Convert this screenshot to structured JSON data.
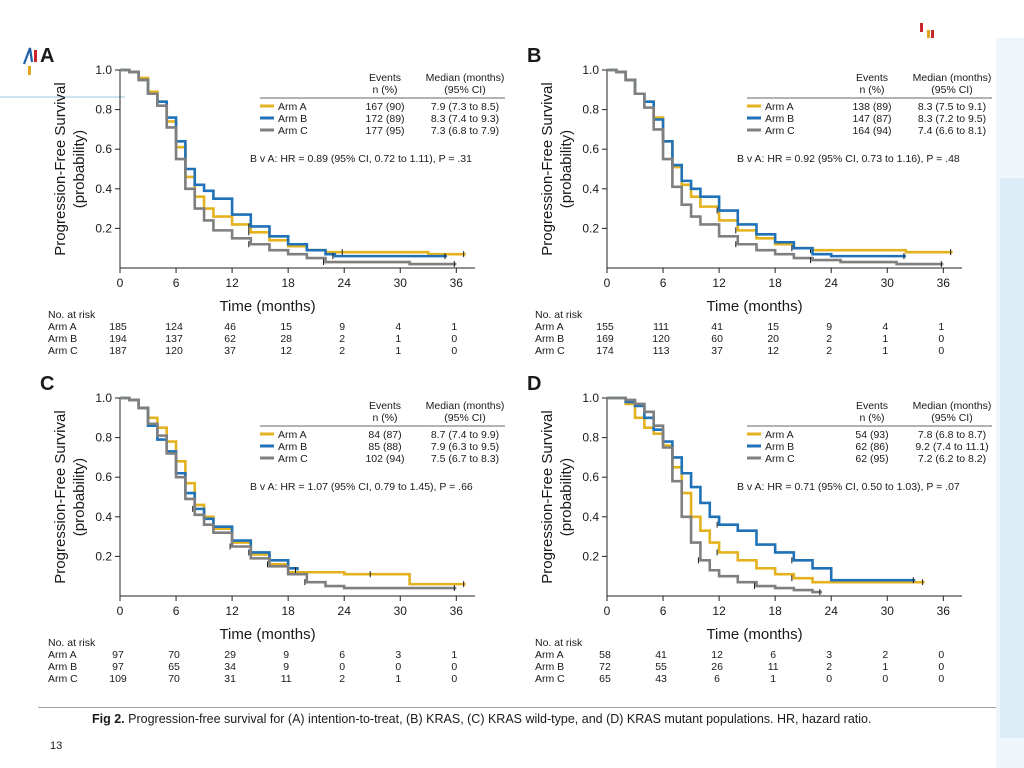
{
  "colors": {
    "arm_a": "#e3b21e",
    "arm_b": "#1f72b8",
    "arm_c": "#7f7f7f",
    "logo_blue": "#1f5fa8",
    "logo_red": "#c8282d",
    "logo_yellow": "#e2a51e"
  },
  "page_number": "13",
  "caption": {
    "label": "Fig 2.",
    "text": "Progression-free survival for (A) intention-to-treat, (B) KRAS, (C) KRAS wild-type, and (D) KRAS mutant populations. HR, hazard ratio."
  },
  "table_headers": {
    "events": "Events",
    "events_unit": "n (%)",
    "median": "Median (months)",
    "median_unit": "(95% CI)"
  },
  "risk_title": "No. at risk",
  "chart_data": [
    {
      "type": "line",
      "panel": "A",
      "xlabel": "Time (months)",
      "ylabel": "Progression-Free Survival (probability)",
      "xlim": [
        0,
        38
      ],
      "ylim": [
        0,
        1.0
      ],
      "xticks": [
        0,
        6,
        12,
        18,
        24,
        30,
        36
      ],
      "yticks": [
        0.2,
        0.4,
        0.6,
        0.8,
        1.0
      ],
      "legend": [
        {
          "arm": "Arm A",
          "events": "167 (90)",
          "median": "7.9 (7.3 to 8.5)"
        },
        {
          "arm": "Arm B",
          "events": "172 (89)",
          "median": "8.3 (7.4 to 9.3)"
        },
        {
          "arm": "Arm C",
          "events": "177 (95)",
          "median": "7.3 (6.8 to 7.9)"
        }
      ],
      "hr_text": "B v A: HR = 0.89 (95% CI, 0.72 to 1.11), P = .31",
      "risk": [
        {
          "arm": "Arm A",
          "values": [
            185,
            124,
            46,
            15,
            9,
            4,
            1
          ]
        },
        {
          "arm": "Arm B",
          "values": [
            194,
            137,
            62,
            28,
            2,
            1,
            0
          ]
        },
        {
          "arm": "Arm C",
          "values": [
            187,
            120,
            37,
            12,
            2,
            1,
            0
          ]
        }
      ],
      "series": [
        {
          "name": "Arm A",
          "x": [
            0,
            1,
            2,
            3,
            4,
            5,
            6,
            7,
            8,
            9,
            10,
            12,
            14,
            16,
            18,
            20,
            22,
            24,
            27,
            30,
            33,
            35,
            37
          ],
          "y": [
            1.0,
            0.99,
            0.96,
            0.89,
            0.84,
            0.74,
            0.61,
            0.46,
            0.36,
            0.3,
            0.26,
            0.22,
            0.18,
            0.14,
            0.11,
            0.09,
            0.08,
            0.08,
            0.08,
            0.08,
            0.07,
            0.07,
            0.07
          ]
        },
        {
          "name": "Arm B",
          "x": [
            0,
            1,
            2,
            3,
            4,
            5,
            6,
            7,
            8,
            9,
            10,
            12,
            14,
            16,
            18,
            20,
            22,
            23,
            25,
            28,
            30,
            32,
            35
          ],
          "y": [
            1.0,
            0.99,
            0.95,
            0.88,
            0.84,
            0.76,
            0.64,
            0.5,
            0.42,
            0.39,
            0.35,
            0.27,
            0.21,
            0.16,
            0.12,
            0.09,
            0.07,
            0.06,
            0.06,
            0.06,
            0.06,
            0.06,
            0.06
          ]
        },
        {
          "name": "Arm C",
          "x": [
            0,
            1,
            2,
            3,
            4,
            5,
            6,
            7,
            8,
            9,
            10,
            12,
            14,
            16,
            18,
            20,
            22,
            25,
            28,
            31,
            34,
            36
          ],
          "y": [
            1.0,
            0.99,
            0.95,
            0.88,
            0.82,
            0.71,
            0.55,
            0.4,
            0.3,
            0.24,
            0.19,
            0.15,
            0.12,
            0.09,
            0.07,
            0.05,
            0.03,
            0.03,
            0.03,
            0.02,
            0.02,
            0.02
          ]
        }
      ]
    },
    {
      "type": "line",
      "panel": "B",
      "xlabel": "Time (months)",
      "ylabel": "Progression-Free Survival (probability)",
      "xlim": [
        0,
        38
      ],
      "ylim": [
        0,
        1.0
      ],
      "xticks": [
        0,
        6,
        12,
        18,
        24,
        30,
        36
      ],
      "yticks": [
        0.2,
        0.4,
        0.6,
        0.8,
        1.0
      ],
      "legend": [
        {
          "arm": "Arm A",
          "events": "138 (89)",
          "median": "8.3 (7.5 to 9.1)"
        },
        {
          "arm": "Arm B",
          "events": "147 (87)",
          "median": "8.3 (7.2 to 9.5)"
        },
        {
          "arm": "Arm C",
          "events": "164 (94)",
          "median": "7.4 (6.6 to 8.1)"
        }
      ],
      "hr_text": "B v A: HR = 0.92 (95% CI, 0.73 to 1.16), P = .48",
      "risk": [
        {
          "arm": "Arm A",
          "values": [
            155,
            111,
            41,
            15,
            9,
            4,
            1
          ]
        },
        {
          "arm": "Arm B",
          "values": [
            169,
            120,
            60,
            20,
            2,
            1,
            0
          ]
        },
        {
          "arm": "Arm C",
          "values": [
            174,
            113,
            37,
            12,
            2,
            1,
            0
          ]
        }
      ],
      "series": [
        {
          "name": "Arm A",
          "x": [
            0,
            1,
            2,
            3,
            4,
            5,
            6,
            7,
            8,
            9,
            10,
            12,
            14,
            16,
            18,
            20,
            22,
            24,
            28,
            32,
            35,
            37
          ],
          "y": [
            1.0,
            0.99,
            0.95,
            0.88,
            0.84,
            0.76,
            0.64,
            0.51,
            0.42,
            0.36,
            0.31,
            0.24,
            0.19,
            0.15,
            0.12,
            0.1,
            0.09,
            0.09,
            0.09,
            0.08,
            0.08,
            0.08
          ]
        },
        {
          "name": "Arm B",
          "x": [
            0,
            1,
            2,
            3,
            4,
            5,
            6,
            7,
            8,
            9,
            10,
            12,
            14,
            16,
            18,
            20,
            22,
            24,
            27,
            30,
            32
          ],
          "y": [
            1.0,
            0.99,
            0.95,
            0.88,
            0.84,
            0.75,
            0.64,
            0.52,
            0.44,
            0.4,
            0.36,
            0.29,
            0.22,
            0.17,
            0.13,
            0.1,
            0.07,
            0.06,
            0.06,
            0.06,
            0.06
          ]
        },
        {
          "name": "Arm C",
          "x": [
            0,
            1,
            2,
            3,
            4,
            5,
            6,
            7,
            8,
            9,
            10,
            12,
            14,
            16,
            18,
            20,
            22,
            25,
            28,
            31,
            34,
            36
          ],
          "y": [
            1.0,
            0.99,
            0.95,
            0.88,
            0.81,
            0.7,
            0.55,
            0.41,
            0.32,
            0.26,
            0.22,
            0.16,
            0.12,
            0.09,
            0.07,
            0.05,
            0.04,
            0.03,
            0.03,
            0.02,
            0.02,
            0.02
          ]
        }
      ]
    },
    {
      "type": "line",
      "panel": "C",
      "xlabel": "Time (months)",
      "ylabel": "Progression-Free Survival (probability)",
      "xlim": [
        0,
        38
      ],
      "ylim": [
        0,
        1.0
      ],
      "xticks": [
        0,
        6,
        12,
        18,
        24,
        30,
        36
      ],
      "yticks": [
        0.2,
        0.4,
        0.6,
        0.8,
        1.0
      ],
      "legend": [
        {
          "arm": "Arm A",
          "events": "84 (87)",
          "median": "8.7 (7.4 to 9.9)"
        },
        {
          "arm": "Arm B",
          "events": "85 (88)",
          "median": "7.9 (6.3 to 9.5)"
        },
        {
          "arm": "Arm C",
          "events": "102 (94)",
          "median": "7.5 (6.7 to 8.3)"
        }
      ],
      "hr_text": "B v A: HR = 1.07 (95% CI, 0.79 to 1.45), P = .66",
      "risk": [
        {
          "arm": "Arm A",
          "values": [
            97,
            70,
            29,
            9,
            6,
            3,
            1
          ]
        },
        {
          "arm": "Arm B",
          "values": [
            97,
            65,
            34,
            9,
            0,
            0,
            0
          ]
        },
        {
          "arm": "Arm C",
          "values": [
            109,
            70,
            31,
            11,
            2,
            1,
            0
          ]
        }
      ],
      "series": [
        {
          "name": "Arm A",
          "x": [
            0,
            1,
            2,
            3,
            4,
            5,
            6,
            7,
            8,
            9,
            10,
            12,
            14,
            16,
            18,
            20,
            22,
            24,
            27,
            29,
            31,
            33,
            35,
            37
          ],
          "y": [
            1.0,
            0.99,
            0.95,
            0.9,
            0.85,
            0.78,
            0.68,
            0.57,
            0.46,
            0.4,
            0.34,
            0.27,
            0.21,
            0.16,
            0.12,
            0.12,
            0.12,
            0.11,
            0.11,
            0.11,
            0.06,
            0.06,
            0.06,
            0.06
          ]
        },
        {
          "name": "Arm B",
          "x": [
            0,
            1,
            2,
            3,
            4,
            5,
            6,
            7,
            8,
            9,
            10,
            12,
            14,
            16,
            18,
            19
          ],
          "y": [
            1.0,
            0.99,
            0.95,
            0.86,
            0.79,
            0.73,
            0.62,
            0.52,
            0.44,
            0.39,
            0.35,
            0.28,
            0.22,
            0.18,
            0.14,
            0.13
          ]
        },
        {
          "name": "Arm C",
          "x": [
            0,
            1,
            2,
            3,
            4,
            5,
            6,
            7,
            8,
            9,
            10,
            12,
            14,
            16,
            18,
            20,
            22,
            24,
            28,
            32,
            36
          ],
          "y": [
            1.0,
            0.99,
            0.95,
            0.87,
            0.81,
            0.72,
            0.6,
            0.49,
            0.41,
            0.36,
            0.32,
            0.25,
            0.19,
            0.15,
            0.11,
            0.07,
            0.05,
            0.04,
            0.04,
            0.04,
            0.04
          ]
        }
      ]
    },
    {
      "type": "line",
      "panel": "D",
      "xlabel": "Time (months)",
      "ylabel": "Progression-Free Survival (probability)",
      "xlim": [
        0,
        38
      ],
      "ylim": [
        0,
        1.0
      ],
      "xticks": [
        0,
        6,
        12,
        18,
        24,
        30,
        36
      ],
      "yticks": [
        0.2,
        0.4,
        0.6,
        0.8,
        1.0
      ],
      "legend": [
        {
          "arm": "Arm A",
          "events": "54 (93)",
          "median": "7.8 (6.8 to 8.7)"
        },
        {
          "arm": "Arm B",
          "events": "62 (86)",
          "median": "9.2 (7.4 to 11.1)"
        },
        {
          "arm": "Arm C",
          "events": "62 (95)",
          "median": "7.2 (6.2 to 8.2)"
        }
      ],
      "hr_text": "B v A: HR = 0.71 (95% CI, 0.50 to 1.03), P = .07",
      "risk": [
        {
          "arm": "Arm A",
          "values": [
            58,
            41,
            12,
            6,
            3,
            2,
            0
          ]
        },
        {
          "arm": "Arm B",
          "values": [
            72,
            55,
            26,
            11,
            2,
            1,
            0
          ]
        },
        {
          "arm": "Arm C",
          "values": [
            65,
            43,
            6,
            1,
            0,
            0,
            0
          ]
        }
      ],
      "series": [
        {
          "name": "Arm A",
          "x": [
            0,
            2,
            3,
            4,
            5,
            6,
            7,
            8,
            9,
            10,
            11,
            12,
            14,
            16,
            18,
            20,
            22,
            24,
            28,
            32,
            34
          ],
          "y": [
            1.0,
            0.97,
            0.9,
            0.85,
            0.82,
            0.76,
            0.65,
            0.52,
            0.4,
            0.33,
            0.27,
            0.22,
            0.18,
            0.14,
            0.11,
            0.09,
            0.07,
            0.07,
            0.07,
            0.07,
            0.07
          ]
        },
        {
          "name": "Arm B",
          "x": [
            0,
            2,
            3,
            4,
            5,
            6,
            7,
            8,
            9,
            10,
            11,
            12,
            14,
            16,
            18,
            20,
            22,
            24,
            28,
            33
          ],
          "y": [
            1.0,
            0.98,
            0.96,
            0.9,
            0.84,
            0.78,
            0.7,
            0.62,
            0.55,
            0.47,
            0.4,
            0.36,
            0.33,
            0.26,
            0.22,
            0.18,
            0.14,
            0.08,
            0.08,
            0.08
          ]
        },
        {
          "name": "Arm C",
          "x": [
            0,
            2,
            3,
            4,
            5,
            6,
            7,
            8,
            9,
            10,
            11,
            12,
            14,
            16,
            18,
            20,
            22,
            23
          ],
          "y": [
            1.0,
            0.99,
            0.97,
            0.93,
            0.86,
            0.75,
            0.58,
            0.4,
            0.27,
            0.18,
            0.13,
            0.1,
            0.07,
            0.05,
            0.04,
            0.03,
            0.02,
            0.02
          ]
        }
      ]
    }
  ]
}
